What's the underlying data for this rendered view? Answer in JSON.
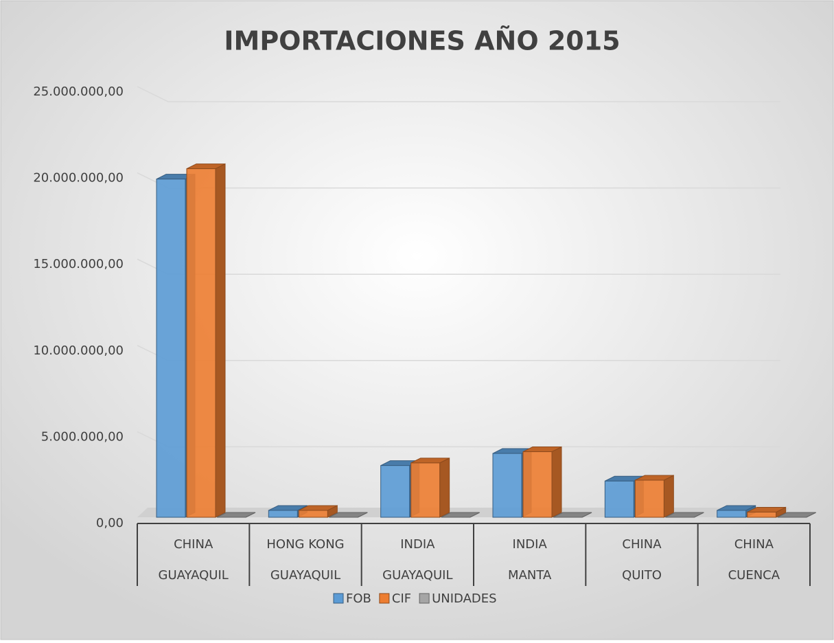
{
  "chart_data": {
    "type": "bar3d",
    "title": "IMPORTACIONES AÑO 2015",
    "categories": [
      [
        "CHINA",
        "GUAYAQUIL"
      ],
      [
        "HONG KONG",
        "GUAYAQUIL"
      ],
      [
        "INDIA",
        "GUAYAQUIL"
      ],
      [
        "INDIA",
        "MANTA"
      ],
      [
        "CHINA",
        "QUITO"
      ],
      [
        "CHINA",
        "CUENCA"
      ]
    ],
    "series": [
      {
        "name": "FOB",
        "color": "#5b9bd5",
        "values": [
          19600000,
          400000,
          3000000,
          3700000,
          2100000,
          400000
        ]
      },
      {
        "name": "CIF",
        "color": "#ed7d31",
        "values": [
          20200000,
          400000,
          3150000,
          3800000,
          2150000,
          300000
        ]
      },
      {
        "name": "UNIDADES",
        "color": "#a5a5a5",
        "values": [
          0,
          0,
          0,
          0,
          0,
          0
        ]
      }
    ],
    "ylim": [
      0,
      25000000
    ],
    "yticks": [
      {
        "value": 0,
        "label": "0,00"
      },
      {
        "value": 5000000,
        "label": "5.000.000,00"
      },
      {
        "value": 10000000,
        "label": "10.000.000,00"
      },
      {
        "value": 15000000,
        "label": "15.000.000,00"
      },
      {
        "value": 20000000,
        "label": "20.000.000,00"
      },
      {
        "value": 25000000,
        "label": "25.000.000,00"
      }
    ],
    "grid": true,
    "legend": "bottom"
  }
}
